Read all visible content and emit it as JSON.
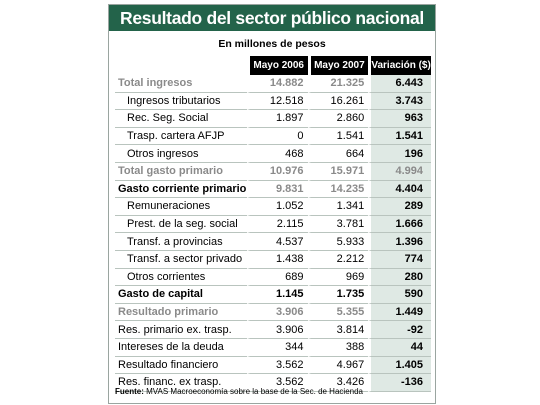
{
  "title": "Resultado del sector público nacional",
  "subtitle": "En millones de pesos",
  "headers": {
    "col1": "Mayo 2006",
    "col2": "Mayo 2007",
    "col3": "Variación ($)"
  },
  "rows": [
    {
      "label": "Total ingresos",
      "a": "14.882",
      "b": "21.325",
      "v": "6.443"
    },
    {
      "label": "Ingresos tributarios",
      "a": "12.518",
      "b": "16.261",
      "v": "3.743"
    },
    {
      "label": "Rec.  Seg. Social",
      "a": "1.897",
      "b": "2.860",
      "v": "963"
    },
    {
      "label": "Trasp. cartera AFJP",
      "a": "0",
      "b": "1.541",
      "v": "1.541"
    },
    {
      "label": "Otros ingresos",
      "a": "468",
      "b": "664",
      "v": "196"
    },
    {
      "label": "Total gasto primario",
      "a": "10.976",
      "b": "15.971",
      "v": "4.994"
    },
    {
      "label": "Gasto corriente primario",
      "a": "9.831",
      "b": "14.235",
      "v": "4.404"
    },
    {
      "label": "Remuneraciones",
      "a": "1.052",
      "b": "1.341",
      "v": "289"
    },
    {
      "label": "Prest. de la seg. social",
      "a": "2.115",
      "b": "3.781",
      "v": "1.666"
    },
    {
      "label": "Transf. a provincias",
      "a": "4.537",
      "b": "5.933",
      "v": "1.396"
    },
    {
      "label": "Transf. a sector privado",
      "a": "1.438",
      "b": "2.212",
      "v": "774"
    },
    {
      "label": "Otros corrientes",
      "a": "689",
      "b": "969",
      "v": "280"
    },
    {
      "label": "Gasto de capital",
      "a": "1.145",
      "b": "1.735",
      "v": "590"
    },
    {
      "label": "Resultado primario",
      "a": "3.906",
      "b": "5.355",
      "v": "1.449"
    },
    {
      "label": "Res. primario ex. trasp.",
      "a": "3.906",
      "b": "3.814",
      "v": "-92"
    },
    {
      "label": "Intereses de la deuda",
      "a": "344",
      "b": "388",
      "v": "44"
    },
    {
      "label": "Resultado financiero",
      "a": "3.562",
      "b": "4.967",
      "v": "1.405"
    },
    {
      "label": "Res. financ. ex trasp.",
      "a": "3.562",
      "b": "3.426",
      "v": "-136"
    }
  ],
  "source": {
    "label": "Fuente:",
    "text": "MVAS Macroeconomía sobre la base de la Sec. de Hacienda"
  },
  "colors": {
    "title_bg": "#23634a",
    "variation_bg": "#dfe9e4",
    "muted_text": "#8a8a8a"
  }
}
